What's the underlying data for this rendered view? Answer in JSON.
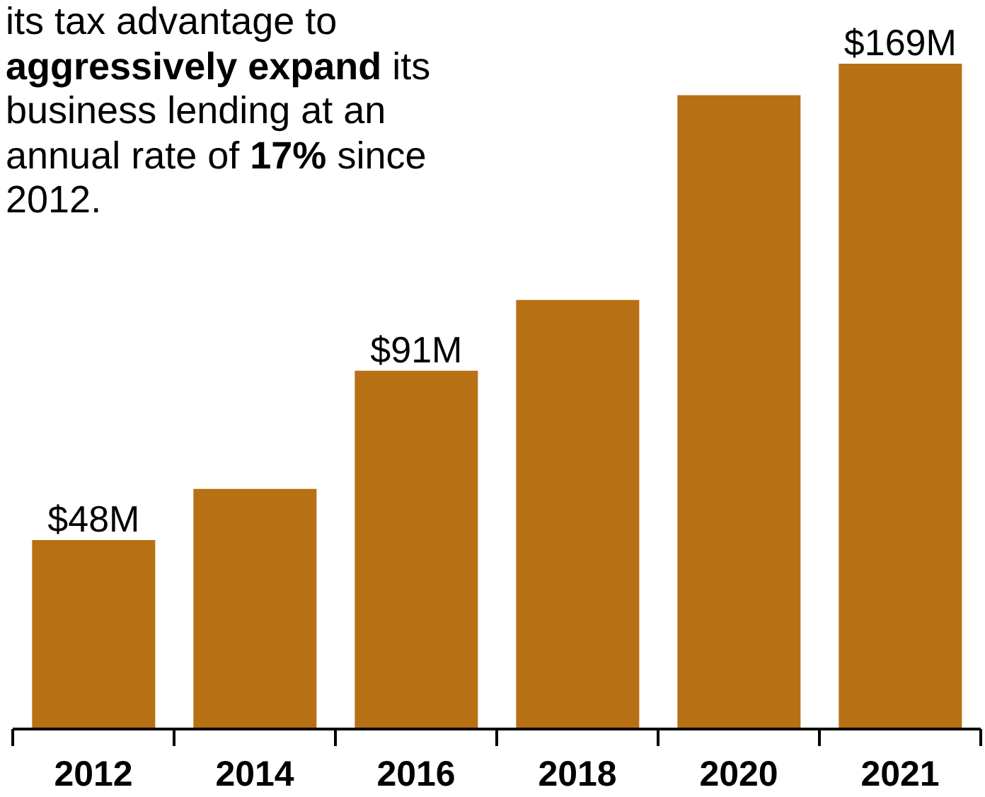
{
  "chart_data": {
    "type": "bar",
    "categories": [
      "2012",
      "2014",
      "2016",
      "2018",
      "2020",
      "2021"
    ],
    "values": [
      48,
      61,
      91,
      109,
      161,
      169
    ],
    "value_labels": [
      "$48M",
      null,
      "$91M",
      null,
      null,
      "$169M"
    ],
    "color": "#b87014",
    "annotations": [
      "its tax advantage to ",
      "aggressively expand",
      " its business lending at an annual rate of ",
      "17%",
      " since 2012."
    ],
    "grid": false,
    "legend": false
  }
}
